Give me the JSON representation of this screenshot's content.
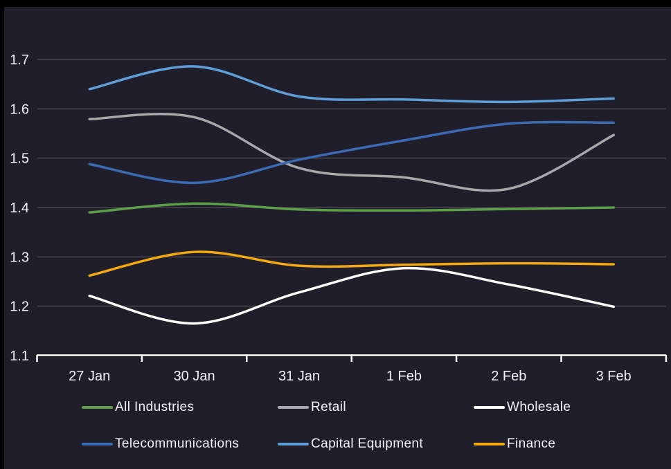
{
  "window": {
    "background": "#201E2B",
    "frame_color": "#000000"
  },
  "colors": {
    "grid": "#3E3C44",
    "axis": "#FFFFFF",
    "tick_label": "#F2F1F5"
  },
  "chart_data": {
    "type": "line",
    "title": "",
    "xlabel": "",
    "ylabel": "",
    "categories": [
      "27 Jan",
      "30 Jan",
      "31 Jan",
      "1 Feb",
      "2 Feb",
      "3 Feb"
    ],
    "series": [
      {
        "name": "All Industries",
        "color": "#5BA047",
        "values": [
          1.39,
          1.408,
          1.396,
          1.394,
          1.397,
          1.4
        ]
      },
      {
        "name": "Retail",
        "color": "#A8A8AA",
        "values": [
          1.579,
          1.583,
          1.48,
          1.461,
          1.438,
          1.547
        ]
      },
      {
        "name": "Wholesale",
        "color": "#FFFFFF",
        "values": [
          1.221,
          1.165,
          1.228,
          1.277,
          1.244,
          1.199
        ]
      },
      {
        "name": "Telecommunications",
        "color": "#3B6CB3",
        "values": [
          1.488,
          1.45,
          1.497,
          1.536,
          1.57,
          1.572
        ]
      },
      {
        "name": "Capital Equipment",
        "color": "#5F9ED6",
        "values": [
          1.64,
          1.686,
          1.625,
          1.619,
          1.614,
          1.621
        ]
      },
      {
        "name": "Finance",
        "color": "#F2A912",
        "values": [
          1.262,
          1.31,
          1.282,
          1.284,
          1.287,
          1.285
        ]
      }
    ],
    "yticks": [
      "1.1",
      "1.2",
      "1.3",
      "1.4",
      "1.5",
      "1.6",
      "1.7"
    ],
    "ylim": [
      1.1,
      1.7
    ],
    "grid": true,
    "legend_position": "bottom",
    "smoothing": "spline"
  }
}
